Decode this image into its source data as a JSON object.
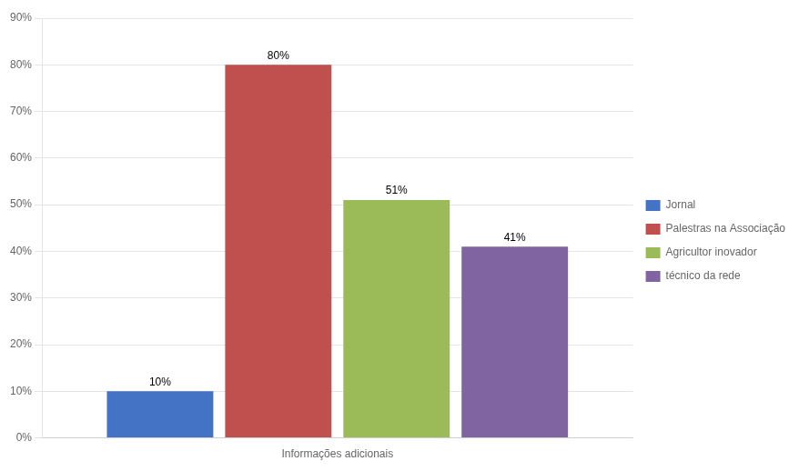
{
  "chart_data": {
    "type": "bar",
    "categories": [
      "Informações adicionais"
    ],
    "series": [
      {
        "name": "Jornal",
        "color": "#4472C4",
        "values": [
          10
        ],
        "value_labels": [
          "10%"
        ]
      },
      {
        "name": "Palestras na Associação",
        "color": "#C0504D",
        "values": [
          80
        ],
        "value_labels": [
          "80%"
        ]
      },
      {
        "name": "Agricultor inovador",
        "color": "#9BBB59",
        "values": [
          51
        ],
        "value_labels": [
          "51%"
        ]
      },
      {
        "name": "técnico da rede",
        "color": "#8064A2",
        "values": [
          41
        ],
        "value_labels": [
          "41%"
        ]
      }
    ],
    "ylim": [
      0,
      90
    ],
    "yticks": [
      {
        "value": 0,
        "label": "0%"
      },
      {
        "value": 10,
        "label": "10%"
      },
      {
        "value": 20,
        "label": "20%"
      },
      {
        "value": 30,
        "label": "30%"
      },
      {
        "value": 40,
        "label": "40%"
      },
      {
        "value": 50,
        "label": "50%"
      },
      {
        "value": 60,
        "label": "60%"
      },
      {
        "value": 70,
        "label": "70%"
      },
      {
        "value": 80,
        "label": "80%"
      },
      {
        "value": 90,
        "label": "90%"
      }
    ],
    "grid": true,
    "data_labels": true,
    "legend": "right"
  }
}
